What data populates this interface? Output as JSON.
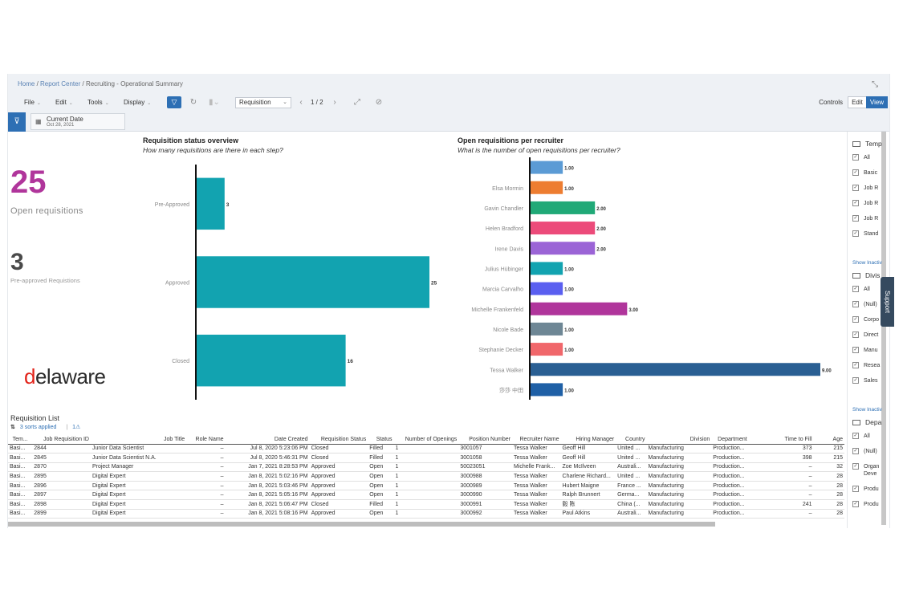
{
  "breadcrumb": {
    "home": "Home",
    "report_center": "Report Center",
    "current": "Recruiting - Operational Summary"
  },
  "toolbar": {
    "menus": [
      "File",
      "Edit",
      "Tools",
      "Display"
    ],
    "story_select": "Requisition",
    "pager": "1 / 2",
    "controls": "Controls",
    "edit": "Edit",
    "view": "View"
  },
  "filter_chip": {
    "label": "Current Date",
    "value": "Oct 28, 2021"
  },
  "kpis": {
    "open_value": "25",
    "open_label": "Open requisitions",
    "preapproved_value": "3",
    "preapproved_label": "Pre-approved Requistions"
  },
  "logo": {
    "text": "delaware"
  },
  "chart_data": [
    {
      "type": "bar",
      "title": "Requisition status overview",
      "subtitle": "How many requisitions are there in each step?",
      "categories": [
        "Pre-Approved",
        "Approved",
        "Closed"
      ],
      "values": [
        3,
        25,
        16
      ],
      "data_labels": [
        "3",
        "25",
        "16"
      ],
      "orientation": "horizontal",
      "xlim": [
        0,
        25
      ],
      "color": "#12a3b0"
    },
    {
      "type": "bar",
      "title": "Open requisitions per recruiter",
      "subtitle": "What is the number of open requisitions per recruiter?",
      "categories": [
        "",
        "Elsa Mormin",
        "Gavin Chandler",
        "Helen Bradford",
        "Irene Davis",
        "Julius Hübinger",
        "Marcia Carvalho",
        "Michelle Frankenfeld",
        "Nicole Bade",
        "Stephanie Decker",
        "Tessa Walker",
        "莎莎 中田"
      ],
      "values": [
        1,
        1,
        2,
        2,
        2,
        1,
        1,
        3,
        1,
        1,
        9,
        1
      ],
      "data_labels": [
        "1.00",
        "1.00",
        "2.00",
        "2.00",
        "2.00",
        "1.00",
        "1.00",
        "3.00",
        "1.00",
        "1.00",
        "9.00",
        "1.00"
      ],
      "colors": [
        "#5b9bd5",
        "#ed7d31",
        "#20a977",
        "#ec4b7a",
        "#9b64d6",
        "#12a3b0",
        "#5a5ff0",
        "#b0359b",
        "#6e8795",
        "#f0676b",
        "#2a5f93",
        "#1f60a6"
      ],
      "orientation": "horizontal",
      "xlim": [
        0,
        9
      ]
    }
  ],
  "req_list": {
    "title": "Requisition List",
    "sorts_applied": "3 sorts applied",
    "warning": "1",
    "columns": [
      "Tem...",
      "Job Requisition ID",
      "Job Title",
      "Role Name",
      "Date Created",
      "Requisition Status",
      "Status",
      "Number of Openings",
      "Position Number",
      "Recruiter Name",
      "Hiring Manager",
      "Country",
      "Division",
      "Department",
      "Time to Fill",
      "Age"
    ],
    "rows": [
      [
        "Basi...",
        "2844",
        "Junior Data Scientist",
        "–",
        "Jul 8, 2020 5:23:06 PM",
        "Closed",
        "Filled",
        "1",
        "3001057",
        "Tessa Walker",
        "Geoff Hill",
        "United ...",
        "Manufacturing",
        "Production...",
        "373",
        "215"
      ],
      [
        "Basi...",
        "2845",
        "Junior Data Scientist N.A.",
        "–",
        "Jul 8, 2020 5:46:31 PM",
        "Closed",
        "Filled",
        "1",
        "3001058",
        "Tessa Walker",
        "Geoff Hill",
        "United ...",
        "Manufacturing",
        "Production...",
        "398",
        "215"
      ],
      [
        "Basi...",
        "2870",
        "Project Manager",
        "–",
        "Jan 7, 2021 8:28:53 PM",
        "Approved",
        "Open",
        "1",
        "50023051",
        "Michelle Frank...",
        "Zoe McIlveen",
        "Australi...",
        "Manufacturing",
        "Production...",
        "–",
        "32"
      ],
      [
        "Basi...",
        "2895",
        "Digital Expert",
        "–",
        "Jan 8, 2021 5:02:16 PM",
        "Approved",
        "Open",
        "1",
        "3000988",
        "Tessa Walker",
        "Charlene Richard...",
        "United ...",
        "Manufacturing",
        "Production...",
        "–",
        "28"
      ],
      [
        "Basi...",
        "2896",
        "Digital Expert",
        "–",
        "Jan 8, 2021 5:03:46 PM",
        "Approved",
        "Open",
        "1",
        "3000989",
        "Tessa Walker",
        "Hubert Maigne",
        "France ...",
        "Manufacturing",
        "Production...",
        "–",
        "28"
      ],
      [
        "Basi...",
        "2897",
        "Digital Expert",
        "–",
        "Jan 8, 2021 5:05:16 PM",
        "Approved",
        "Open",
        "1",
        "3000990",
        "Tessa Walker",
        "Ralph Brunnert",
        "Germa...",
        "Manufacturing",
        "Production...",
        "–",
        "28"
      ],
      [
        "Basi...",
        "2898",
        "Digital Expert",
        "–",
        "Jan 8, 2021 5:06:47 PM",
        "Closed",
        "Filled",
        "1",
        "3000991",
        "Tessa Walker",
        "毅 陈",
        "China (...",
        "Manufacturing",
        "Production...",
        "241",
        "28"
      ],
      [
        "Basi...",
        "2899",
        "Digital Expert",
        "–",
        "Jan 8, 2021 5:08:16 PM",
        "Approved",
        "Open",
        "1",
        "3000992",
        "Tessa Walker",
        "Paul Atkins",
        "Australi...",
        "Manufacturing",
        "Production...",
        "–",
        "28"
      ]
    ]
  },
  "filters": [
    {
      "title": "Temp",
      "items": [
        "All",
        "Basic",
        "Job R",
        "Job R",
        "Job R",
        "Stand"
      ]
    },
    {
      "title": "Divis",
      "items": [
        "All",
        "(Null)",
        "Corpo",
        "Direct",
        "Manu",
        "Resea",
        "Sales"
      ]
    },
    {
      "title": "Depa",
      "items": [
        "All",
        "(Null)",
        "Organ Deve",
        "Produ",
        "Produ"
      ]
    }
  ],
  "show_inactive": "Show Inactiv",
  "support": "Support"
}
